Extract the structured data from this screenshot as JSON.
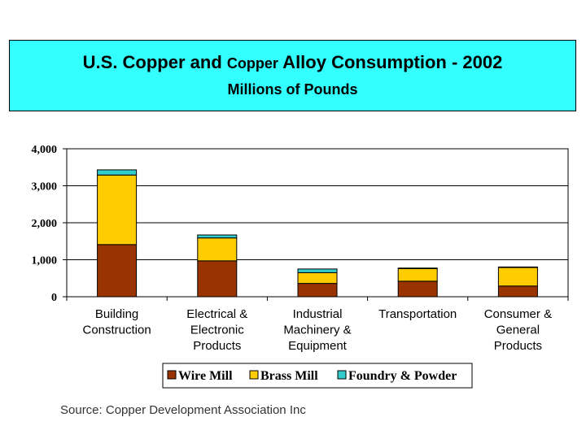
{
  "header": {
    "title_part1": "U.S. Copper and ",
    "title_part2": "Copper",
    "title_part3": " Alloy Consumption - 2002",
    "subtitle": "Millions of Pounds"
  },
  "source": "Source: Copper Development Association Inc",
  "colors": {
    "header_bg": "#33ffff",
    "wire_mill": "#993300",
    "brass_mill": "#ffcc00",
    "foundry_powder": "#33cccc"
  },
  "chart_data": {
    "type": "bar",
    "stacked": true,
    "title": "U.S. Copper and Copper Alloy Consumption - 2002",
    "subtitle": "Millions of Pounds",
    "categories": [
      [
        "Building",
        "Construction"
      ],
      [
        "Electrical &",
        "Electronic",
        "Products"
      ],
      [
        "Industrial",
        "Machinery &",
        "Equipment"
      ],
      [
        "Transportation"
      ],
      [
        "Consumer &",
        "General",
        "Products"
      ]
    ],
    "series": [
      {
        "name": "Wire Mill",
        "color": "#993300",
        "values": [
          1410,
          970,
          360,
          420,
          290
        ]
      },
      {
        "name": "Brass Mill",
        "color": "#ffcc00",
        "values": [
          1880,
          620,
          290,
          340,
          500
        ]
      },
      {
        "name": "Foundry & Powder",
        "color": "#33cccc",
        "values": [
          140,
          80,
          100,
          15,
          15
        ]
      }
    ],
    "ylim": [
      0,
      4000
    ],
    "yticks": [
      "4,000",
      "3,000",
      "2,000",
      "1,000",
      "0"
    ],
    "ytick_values": [
      4000,
      3000,
      2000,
      1000,
      0
    ],
    "grid": true,
    "legend_position": "bottom"
  }
}
